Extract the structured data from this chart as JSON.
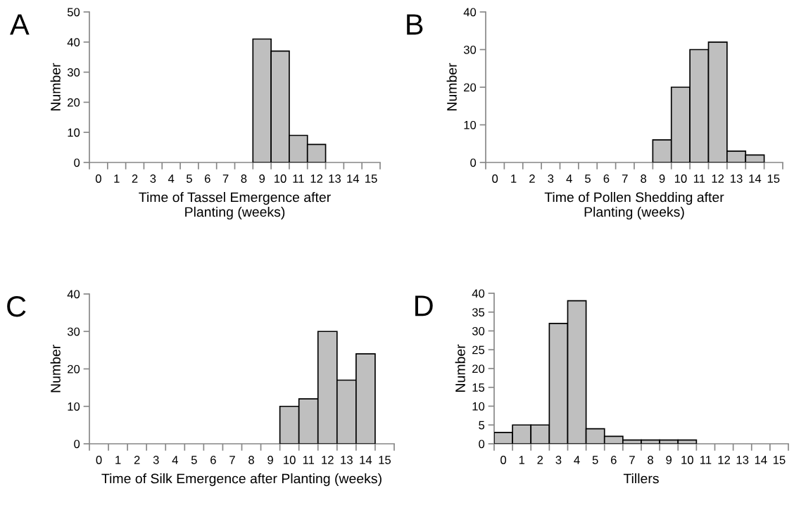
{
  "chart_data": [
    {
      "type": "bar",
      "categories": [
        "0",
        "1",
        "2",
        "3",
        "4",
        "5",
        "6",
        "7",
        "8",
        "9",
        "10",
        "11",
        "12",
        "13",
        "14",
        "15"
      ],
      "values": [
        0,
        0,
        0,
        0,
        0,
        0,
        0,
        0,
        0,
        41,
        37,
        9,
        6,
        0,
        0,
        0
      ],
      "color": "#bfbfbf",
      "xlabel": "Time of Tassel Emergence after Planting (weeks)",
      "ylabel": "Number",
      "ylim": [
        0,
        50
      ],
      "yticks": [
        0,
        10,
        20,
        30,
        40,
        50
      ],
      "annotations": [
        "A"
      ]
    },
    {
      "type": "bar",
      "categories": [
        "0",
        "1",
        "2",
        "3",
        "4",
        "5",
        "6",
        "7",
        "8",
        "9",
        "10",
        "11",
        "12",
        "13",
        "14",
        "15"
      ],
      "values": [
        0,
        0,
        0,
        0,
        0,
        0,
        0,
        0,
        0,
        6,
        20,
        30,
        32,
        3,
        2,
        0
      ],
      "color": "#bfbfbf",
      "xlabel": "Time of Pollen Shedding after Planting (weeks)",
      "ylabel": "Number",
      "ylim": [
        0,
        40
      ],
      "yticks": [
        0,
        10,
        20,
        30,
        40
      ],
      "annotations": [
        "B"
      ]
    },
    {
      "type": "bar",
      "categories": [
        "0",
        "1",
        "2",
        "3",
        "4",
        "5",
        "6",
        "7",
        "8",
        "9",
        "10",
        "11",
        "12",
        "13",
        "14",
        "15"
      ],
      "values": [
        0,
        0,
        0,
        0,
        0,
        0,
        0,
        0,
        0,
        0,
        10,
        12,
        30,
        17,
        24,
        0
      ],
      "color": "#bfbfbf",
      "xlabel": "Time of Silk Emergence after Planting (weeks)",
      "ylabel": "Number",
      "ylim": [
        0,
        40
      ],
      "yticks": [
        0,
        10,
        20,
        30,
        40
      ],
      "annotations": [
        "C"
      ]
    },
    {
      "type": "bar",
      "categories": [
        "0",
        "1",
        "2",
        "3",
        "4",
        "5",
        "6",
        "7",
        "8",
        "9",
        "10",
        "11",
        "12",
        "13",
        "14",
        "15"
      ],
      "values": [
        3,
        5,
        5,
        32,
        38,
        4,
        2,
        1,
        1,
        1,
        1,
        0,
        0,
        0,
        0,
        0
      ],
      "color": "#bfbfbf",
      "xlabel": "Tillers",
      "ylabel": "Number",
      "ylim": [
        0,
        40
      ],
      "yticks": [
        0,
        5,
        10,
        15,
        20,
        25,
        30,
        35,
        40
      ],
      "annotations": [
        "D"
      ]
    }
  ]
}
